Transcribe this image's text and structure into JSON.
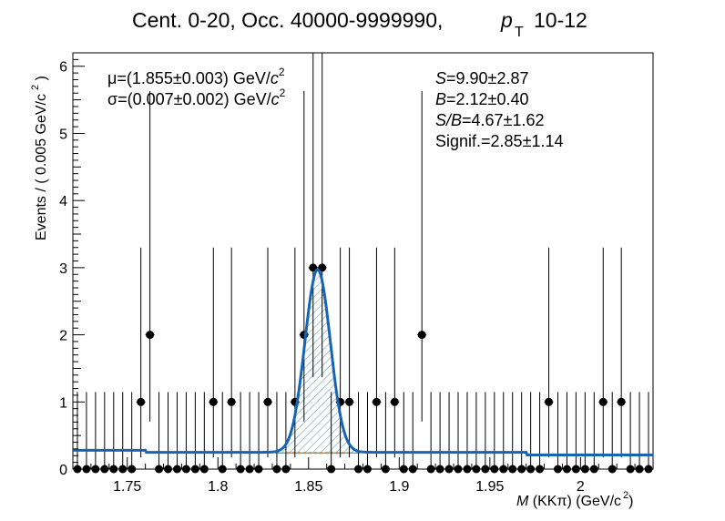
{
  "chart_data": {
    "type": "scatter",
    "title": {
      "prefix": "Cent. 0-20, Occ. 40000-9999990,",
      "var": "p",
      "sub": "T",
      "range": "10-12"
    },
    "xlabel": {
      "var": "M",
      "rest": " (KKπ) (GeV/c",
      "sup": "2",
      "close": ")"
    },
    "ylabel": {
      "text": "Events / ( 0.005 GeV/c",
      "sup": "2",
      "close": " )"
    },
    "xlim": [
      1.72,
      2.04
    ],
    "ylim": [
      0,
      6.2
    ],
    "xticks": [
      1.75,
      1.8,
      1.85,
      1.9,
      1.95,
      2.0
    ],
    "xtick_labels": [
      "1.75",
      "1.8",
      "1.85",
      "1.9",
      "1.95",
      "2"
    ],
    "yticks": [
      0,
      1,
      2,
      3,
      4,
      5,
      6
    ],
    "ytick_labels": [
      "0",
      "1",
      "2",
      "3",
      "4",
      "5",
      "6"
    ],
    "bin_width": 0.005,
    "x": [
      1.7225,
      1.7275,
      1.7325,
      1.7375,
      1.7425,
      1.7475,
      1.7525,
      1.7575,
      1.7625,
      1.7675,
      1.7725,
      1.7775,
      1.7825,
      1.7875,
      1.7925,
      1.7975,
      1.8025,
      1.8075,
      1.8125,
      1.8175,
      1.8225,
      1.8275,
      1.8325,
      1.8375,
      1.8425,
      1.8475,
      1.8525,
      1.8575,
      1.8625,
      1.8675,
      1.8725,
      1.8775,
      1.8825,
      1.8875,
      1.8925,
      1.8975,
      1.9025,
      1.9075,
      1.9125,
      1.9175,
      1.9225,
      1.9275,
      1.9325,
      1.9375,
      1.9425,
      1.9475,
      1.9525,
      1.9575,
      1.9625,
      1.9675,
      1.9725,
      1.9775,
      1.9825,
      1.9875,
      1.9925,
      1.9975,
      2.0025,
      2.0075,
      2.0125,
      2.0175,
      2.0225,
      2.0275,
      2.0325,
      2.0375
    ],
    "y": [
      0,
      0,
      0,
      0,
      0,
      0,
      0,
      1,
      2,
      0,
      0,
      0,
      0,
      0,
      0,
      1,
      0,
      1,
      0,
      0,
      0,
      1,
      0,
      0,
      1,
      2,
      3,
      3,
      0,
      1,
      1,
      0,
      0,
      1,
      0,
      1,
      0,
      0,
      2,
      0,
      0,
      0,
      0,
      0,
      0,
      0,
      0,
      0,
      0,
      0,
      0,
      0,
      1,
      0,
      0,
      0,
      0,
      0,
      1,
      0,
      1,
      0,
      0,
      0
    ],
    "signal_fit": {
      "mean": 1.855,
      "sigma": 0.007
    },
    "annotations_left": [
      {
        "sym": "μ",
        "text": "=(1.855±0.003) GeV/",
        "var": "c",
        "sup": "2"
      },
      {
        "sym": "σ",
        "text": "=(0.007±0.002) GeV/",
        "var": "c",
        "sup": "2"
      }
    ],
    "annotations_right": [
      {
        "var": "S",
        "text": "=9.90±2.87"
      },
      {
        "var": "B",
        "text": "=2.12±0.40"
      },
      {
        "var": "S/B",
        "text": "=4.67±1.62"
      },
      {
        "var": "",
        "text": "Signif.=2.85±1.14"
      }
    ],
    "colors": {
      "fit": "#1764b4",
      "background": "#e0782a",
      "hatch": "#2a7d90",
      "data": "#000000"
    },
    "grid": false,
    "legend": "none"
  }
}
